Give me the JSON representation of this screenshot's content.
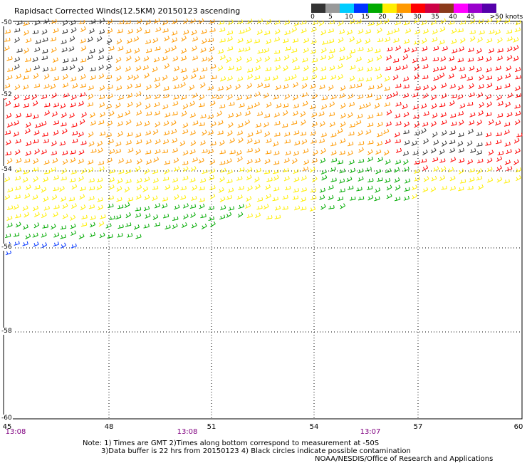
{
  "title": "Rapidsact Corrected Winds(12.5KM) 20150123 ascending",
  "speed_scale": {
    "labels": [
      "0",
      "5",
      "10",
      "15",
      "20",
      "25",
      "30",
      "35",
      "40",
      "45",
      ">50 knots"
    ],
    "colors": [
      "#333333",
      "#999999",
      "#00ccff",
      "#0033ff",
      "#00aa00",
      "#ffee00",
      "#ff9900",
      "#ff0000",
      "#cc0044",
      "#8b3a1a",
      "#ff00ff",
      "#9900cc",
      "#5500aa"
    ]
  },
  "map": {
    "lat_labels": [
      "-50",
      "-52",
      "-54",
      "-56",
      "-58",
      "-60"
    ],
    "lon_labels": [
      "45",
      "48",
      "51",
      "54",
      "57",
      "60"
    ],
    "lat_range": [
      -60,
      -50
    ],
    "lon_range": [
      45,
      60
    ],
    "time_labels": [
      "13:08",
      "13:08",
      "13:07"
    ]
  },
  "notes": {
    "line1": "Note: 1) Times are GMT 2)Times along bottom correspond to measurement at -50S",
    "line2": "3)Data buffer is 22 hrs from 20150123 4) Black circles indicate possible contamination",
    "credit": "NOAA/NESDIS/Office of Research and Applications"
  }
}
